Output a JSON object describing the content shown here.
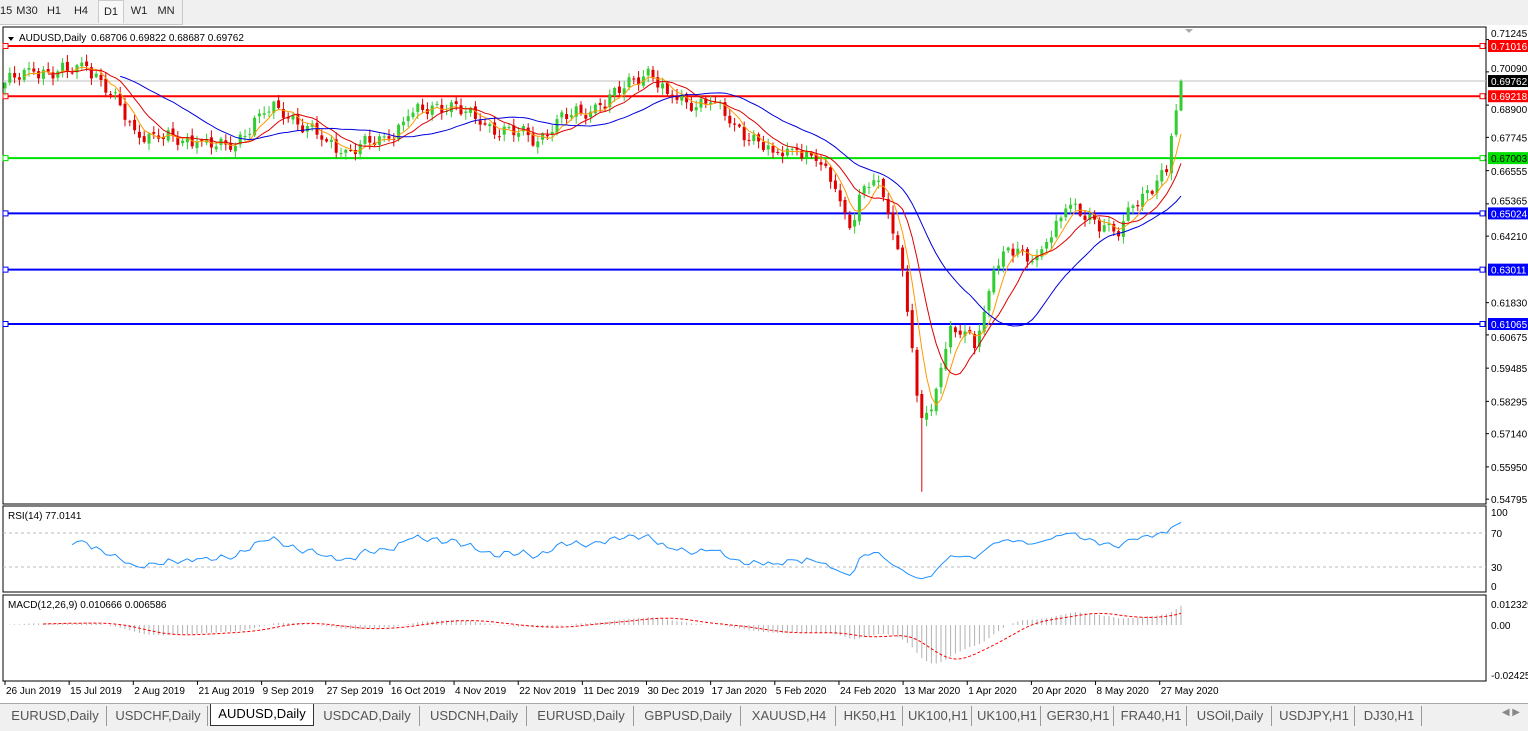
{
  "toolbar": {
    "timeframes": [
      "15",
      "M30",
      "H1",
      "H4",
      "D1",
      "W1",
      "MN"
    ],
    "active": "D1"
  },
  "chart": {
    "symbol_header": "AUDUSD,Daily",
    "ohlc": "0.68706 0.69822 0.68687 0.69762",
    "current_price": "0.69762",
    "price_ticks": [
      "0.71245",
      "0.70090",
      "0.68900",
      "0.67745",
      "0.66555",
      "0.65365",
      "0.64210",
      "0.61830",
      "0.60675",
      "0.59485",
      "0.58295",
      "0.57140",
      "0.55950",
      "0.54795"
    ],
    "levels": [
      {
        "price": "0.71016",
        "color": "#ff0000"
      },
      {
        "price": "0.69218",
        "color": "#ff0000"
      },
      {
        "price": "0.67003",
        "color": "#00e000"
      },
      {
        "price": "0.65024",
        "color": "#0000ff"
      },
      {
        "price": "0.63011",
        "color": "#0000ff"
      },
      {
        "price": "0.61065",
        "color": "#0000ff"
      }
    ],
    "colors": {
      "bull": "#33cc33",
      "bear": "#e00000",
      "ma_fast": "#ff9900",
      "ma_mid": "#dd0000",
      "ma_slow": "#0000dd",
      "rsi": "#1e90ff",
      "macd_hist": "#b0b0b0",
      "macd_signal": "#ff0000"
    },
    "date_labels": [
      "26 Jun 2019",
      "15 Jul 2019",
      "2 Aug 2019",
      "21 Aug 2019",
      "9 Sep 2019",
      "27 Sep 2019",
      "16 Oct 2019",
      "4 Nov 2019",
      "22 Nov 2019",
      "11 Dec 2019",
      "30 Dec 2019",
      "17 Jan 2020",
      "5 Feb 2020",
      "24 Feb 2020",
      "13 Mar 2020",
      "1 Apr 2020",
      "20 Apr 2020",
      "8 May 2020",
      "27 May 2020"
    ]
  },
  "rsi": {
    "label": "RSI(14) 77.0141",
    "ticks": [
      "100",
      "70",
      "30",
      "0"
    ]
  },
  "macd": {
    "label": "MACD(12,26,9) 0.010666 0.006586",
    "ticks": [
      "0.012329",
      "0.00",
      "-0.02425"
    ]
  },
  "chart_data": {
    "type": "candlestick",
    "symbol": "AUDUSD",
    "timeframe": "Daily",
    "ylim": [
      0.5466,
      0.7134
    ],
    "close_path": [
      [
        "2019-06-26",
        0.697
      ],
      [
        "2019-07-04",
        0.701
      ],
      [
        "2019-07-15",
        0.701
      ],
      [
        "2019-07-19",
        0.703
      ],
      [
        "2019-07-24",
        0.698
      ],
      [
        "2019-08-02",
        0.68
      ],
      [
        "2019-08-09",
        0.677
      ],
      [
        "2019-08-21",
        0.676
      ],
      [
        "2019-08-30",
        0.673
      ],
      [
        "2019-09-09",
        0.686
      ],
      [
        "2019-09-13",
        0.688
      ],
      [
        "2019-09-27",
        0.676
      ],
      [
        "2019-10-03",
        0.673
      ],
      [
        "2019-10-16",
        0.677
      ],
      [
        "2019-10-22",
        0.685
      ],
      [
        "2019-11-04",
        0.69
      ],
      [
        "2019-11-12",
        0.682
      ],
      [
        "2019-11-22",
        0.679
      ],
      [
        "2019-11-28",
        0.676
      ],
      [
        "2019-12-04",
        0.684
      ],
      [
        "2019-12-11",
        0.686
      ],
      [
        "2019-12-17",
        0.689
      ],
      [
        "2019-12-24",
        0.695
      ],
      [
        "2019-12-31",
        0.702
      ],
      [
        "2020-01-06",
        0.693
      ],
      [
        "2020-01-10",
        0.69
      ],
      [
        "2020-01-17",
        0.69
      ],
      [
        "2020-01-24",
        0.682
      ],
      [
        "2020-02-05",
        0.672
      ],
      [
        "2020-02-12",
        0.673
      ],
      [
        "2020-02-18",
        0.669
      ],
      [
        "2020-02-24",
        0.659
      ],
      [
        "2020-02-27",
        0.645
      ],
      [
        "2020-03-03",
        0.66
      ],
      [
        "2020-03-06",
        0.662
      ],
      [
        "2020-03-10",
        0.65
      ],
      [
        "2020-03-13",
        0.63
      ],
      [
        "2020-03-16",
        0.615
      ],
      [
        "2020-03-18",
        0.585
      ],
      [
        "2020-03-19",
        0.577
      ],
      [
        "2020-03-23",
        0.58
      ],
      [
        "2020-03-25",
        0.595
      ],
      [
        "2020-03-27",
        0.61
      ],
      [
        "2020-04-01",
        0.608
      ],
      [
        "2020-04-03",
        0.602
      ],
      [
        "2020-04-07",
        0.615
      ],
      [
        "2020-04-09",
        0.63
      ],
      [
        "2020-04-14",
        0.638
      ],
      [
        "2020-04-20",
        0.633
      ],
      [
        "2020-04-22",
        0.635
      ],
      [
        "2020-04-24",
        0.64
      ],
      [
        "2020-04-30",
        0.652
      ],
      [
        "2020-05-08",
        0.648
      ],
      [
        "2020-05-12",
        0.646
      ],
      [
        "2020-05-15",
        0.642
      ],
      [
        "2020-05-20",
        0.653
      ],
      [
        "2020-05-27",
        0.662
      ],
      [
        "2020-05-29",
        0.665
      ],
      [
        "2020-06-01",
        0.678
      ],
      [
        "2020-06-02",
        0.6871
      ],
      [
        "2020-06-03",
        0.69762
      ]
    ],
    "extreme_lows": [
      [
        "2020-03-19",
        0.5506
      ]
    ],
    "last_bar": {
      "open": 0.68706,
      "high": 0.69822,
      "low": 0.68687,
      "close": 0.69762
    },
    "rsi_levels": [
      70,
      30
    ],
    "rsi_last": 77.0141,
    "macd_last": {
      "main": 0.010666,
      "signal": 0.006586
    }
  },
  "tabs": {
    "items": [
      "EURUSD,Daily",
      "USDCHF,Daily",
      "AUDUSD,Daily",
      "USDCAD,Daily",
      "USDCNH,Daily",
      "EURUSD,Daily",
      "GBPUSD,Daily",
      "XAUUSD,H4",
      "HK50,H1",
      "UK100,H1",
      "UK100,H1",
      "GER30,H1",
      "FRA40,H1",
      "USOil,Daily",
      "USDJPY,H1",
      "DJ30,H1"
    ],
    "active": 2
  }
}
